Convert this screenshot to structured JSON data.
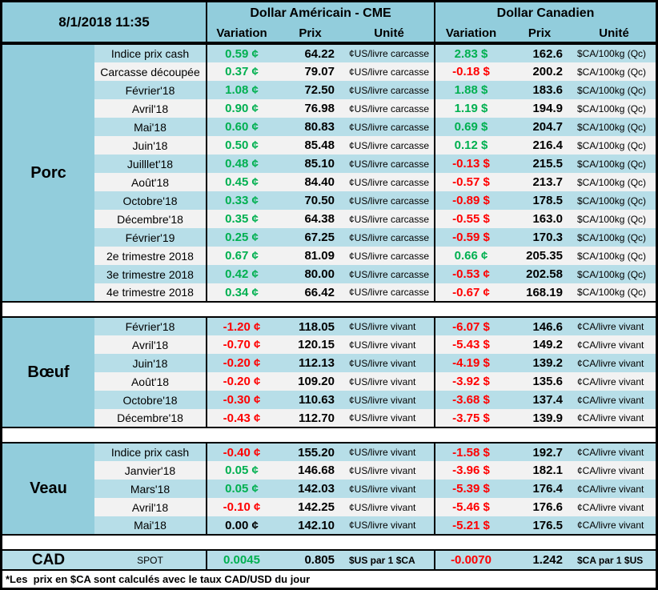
{
  "colors": {
    "positive": "#00B050",
    "negative": "#FF0000",
    "neutral": "#000000",
    "header_bg": "#92CDDC",
    "stripe_blue": "#B7DEE8",
    "stripe_gray": "#F2F2F2"
  },
  "header": {
    "datetime": "8/1/2018 11:35",
    "us_title": "Dollar Américain - CME",
    "ca_title": "Dollar Canadien",
    "col_variation": "Variation",
    "col_prix": "Prix",
    "col_unite": "Unité"
  },
  "sections": [
    {
      "name": "Porc",
      "rows": [
        {
          "label": "Indice prix cash",
          "uv": "0.59 ¢",
          "up": "64.22",
          "uu": "¢US/livre carcasse",
          "cv": "2.83 $",
          "cp": "162.6",
          "cu": "$CA/100kg (Qc)"
        },
        {
          "label": "Carcasse découpée",
          "uv": "0.37 ¢",
          "up": "79.07",
          "uu": "¢US/livre carcasse",
          "cv": "-0.18 $",
          "cp": "200.2",
          "cu": "$CA/100kg (Qc)"
        },
        {
          "label": "Février'18",
          "uv": "1.08 ¢",
          "up": "72.50",
          "uu": "¢US/livre carcasse",
          "cv": "1.88 $",
          "cp": "183.6",
          "cu": "$CA/100kg (Qc)"
        },
        {
          "label": "Avril'18",
          "uv": "0.90 ¢",
          "up": "76.98",
          "uu": "¢US/livre carcasse",
          "cv": "1.19 $",
          "cp": "194.9",
          "cu": "$CA/100kg (Qc)"
        },
        {
          "label": "Mai'18",
          "uv": "0.60 ¢",
          "up": "80.83",
          "uu": "¢US/livre carcasse",
          "cv": "0.69 $",
          "cp": "204.7",
          "cu": "$CA/100kg (Qc)"
        },
        {
          "label": "Juin'18",
          "uv": "0.50 ¢",
          "up": "85.48",
          "uu": "¢US/livre carcasse",
          "cv": "0.12 $",
          "cp": "216.4",
          "cu": "$CA/100kg (Qc)"
        },
        {
          "label": "Juilllet'18",
          "uv": "0.48 ¢",
          "up": "85.10",
          "uu": "¢US/livre carcasse",
          "cv": "-0.13 $",
          "cp": "215.5",
          "cu": "$CA/100kg (Qc)"
        },
        {
          "label": "Août'18",
          "uv": "0.45 ¢",
          "up": "84.40",
          "uu": "¢US/livre carcasse",
          "cv": "-0.57 $",
          "cp": "213.7",
          "cu": "$CA/100kg (Qc)"
        },
        {
          "label": "Octobre'18",
          "uv": "0.33 ¢",
          "up": "70.50",
          "uu": "¢US/livre carcasse",
          "cv": "-0.89 $",
          "cp": "178.5",
          "cu": "$CA/100kg (Qc)"
        },
        {
          "label": "Décembre'18",
          "uv": "0.35 ¢",
          "up": "64.38",
          "uu": "¢US/livre carcasse",
          "cv": "-0.55 $",
          "cp": "163.0",
          "cu": "$CA/100kg (Qc)"
        },
        {
          "label": "Février'19",
          "uv": "0.25 ¢",
          "up": "67.25",
          "uu": "¢US/livre carcasse",
          "cv": "-0.59 $",
          "cp": "170.3",
          "cu": "$CA/100kg (Qc)"
        },
        {
          "label": "2e trimestre 2018",
          "uv": "0.67 ¢",
          "up": "81.09",
          "uu": "¢US/livre carcasse",
          "cv": "0.66 ¢",
          "cp": "205.35",
          "cu": "$CA/100kg (Qc)"
        },
        {
          "label": "3e trimestre 2018",
          "uv": "0.42 ¢",
          "up": "80.00",
          "uu": "¢US/livre carcasse",
          "cv": "-0.53 ¢",
          "cp": "202.58",
          "cu": "$CA/100kg (Qc)"
        },
        {
          "label": "4e trimestre 2018",
          "uv": "0.34 ¢",
          "up": "66.42",
          "uu": "¢US/livre carcasse",
          "cv": "-0.67 ¢",
          "cp": "168.19",
          "cu": "$CA/100kg (Qc)"
        }
      ]
    },
    {
      "name": "Bœuf",
      "rows": [
        {
          "label": "Février'18",
          "uv": "-1.20 ¢",
          "up": "118.05",
          "uu": "¢US/livre vivant",
          "cv": "-6.07 $",
          "cp": "146.6",
          "cu": "¢CA/livre vivant"
        },
        {
          "label": "Avril'18",
          "uv": "-0.70 ¢",
          "up": "120.15",
          "uu": "¢US/livre vivant",
          "cv": "-5.43 $",
          "cp": "149.2",
          "cu": "¢CA/livre vivant"
        },
        {
          "label": "Juin'18",
          "uv": "-0.20 ¢",
          "up": "112.13",
          "uu": "¢US/livre vivant",
          "cv": "-4.19 $",
          "cp": "139.2",
          "cu": "¢CA/livre vivant"
        },
        {
          "label": "Août'18",
          "uv": "-0.20 ¢",
          "up": "109.20",
          "uu": "¢US/livre vivant",
          "cv": "-3.92 $",
          "cp": "135.6",
          "cu": "¢CA/livre vivant"
        },
        {
          "label": "Octobre'18",
          "uv": "-0.30 ¢",
          "up": "110.63",
          "uu": "¢US/livre vivant",
          "cv": "-3.68 $",
          "cp": "137.4",
          "cu": "¢CA/livre vivant"
        },
        {
          "label": "Décembre'18",
          "uv": "-0.43 ¢",
          "up": "112.70",
          "uu": "¢US/livre vivant",
          "cv": "-3.75 $",
          "cp": "139.9",
          "cu": "¢CA/livre vivant"
        }
      ]
    },
    {
      "name": "Veau",
      "rows": [
        {
          "label": "Indice prix cash",
          "uv": "-0.40 ¢",
          "up": "155.20",
          "uu": "¢US/livre vivant",
          "cv": "-1.58 $",
          "cp": "192.7",
          "cu": "¢CA/livre vivant"
        },
        {
          "label": "Janvier'18",
          "uv": "0.05 ¢",
          "up": "146.68",
          "uu": "¢US/livre vivant",
          "cv": "-3.96 $",
          "cp": "182.1",
          "cu": "¢CA/livre vivant"
        },
        {
          "label": "Mars'18",
          "uv": "0.05 ¢",
          "up": "142.03",
          "uu": "¢US/livre vivant",
          "cv": "-5.39 $",
          "cp": "176.4",
          "cu": "¢CA/livre vivant"
        },
        {
          "label": "Avril'18",
          "uv": "-0.10 ¢",
          "up": "142.25",
          "uu": "¢US/livre vivant",
          "cv": "-5.46 $",
          "cp": "176.6",
          "cu": "¢CA/livre vivant"
        },
        {
          "label": "Mai'18",
          "uv": "0.00 ¢",
          "up": "142.10",
          "uu": "¢US/livre vivant",
          "cv": "-5.21 $",
          "cp": "176.5",
          "cu": "¢CA/livre vivant"
        }
      ]
    }
  ],
  "cad": {
    "name": "CAD",
    "label": "SPOT",
    "uv": "0.0045",
    "up": "0.805",
    "uu": "$US par 1 $CA",
    "cv": "-0.0070",
    "cp": "1.242",
    "cu": "$CA par 1 $US"
  },
  "footnote": "*Les  prix en $CA sont calculés avec le taux CAD/USD du jour"
}
